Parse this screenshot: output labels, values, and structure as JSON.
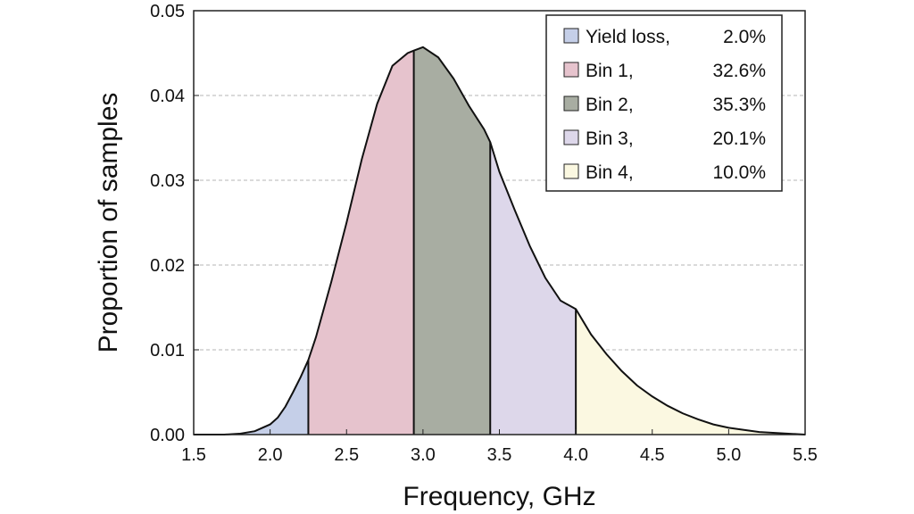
{
  "chart_data": {
    "type": "area",
    "xlabel": "Frequency, GHz",
    "ylabel": "Proportion of samples",
    "xlim": [
      1.5,
      5.5
    ],
    "ylim": [
      0,
      0.05
    ],
    "x_ticks": [
      "1.5",
      "2.0",
      "2.5",
      "3.0",
      "3.5",
      "4.0",
      "4.5",
      "5.0",
      "5.5"
    ],
    "y_ticks": [
      "0.00",
      "0.01",
      "0.02",
      "0.03",
      "0.04",
      "0.05"
    ],
    "grid": "horizontal dashed",
    "legend_position": "top-right",
    "curve": {
      "x": [
        1.5,
        1.7,
        1.8,
        1.9,
        2.0,
        2.05,
        2.1,
        2.15,
        2.2,
        2.25,
        2.3,
        2.4,
        2.5,
        2.6,
        2.7,
        2.8,
        2.9,
        2.94,
        3.0,
        3.1,
        3.2,
        3.3,
        3.4,
        3.44,
        3.5,
        3.6,
        3.7,
        3.8,
        3.9,
        4.0,
        4.1,
        4.2,
        4.3,
        4.4,
        4.5,
        4.6,
        4.7,
        4.8,
        4.9,
        5.0,
        5.2,
        5.5
      ],
      "y": [
        0.0,
        0.0,
        0.0001,
        0.0004,
        0.0012,
        0.002,
        0.0033,
        0.005,
        0.0068,
        0.0088,
        0.0115,
        0.018,
        0.025,
        0.0325,
        0.039,
        0.0435,
        0.045,
        0.0453,
        0.0457,
        0.0445,
        0.042,
        0.0388,
        0.036,
        0.0345,
        0.031,
        0.0265,
        0.0222,
        0.0185,
        0.0158,
        0.0148,
        0.0118,
        0.0095,
        0.0075,
        0.0058,
        0.0045,
        0.0034,
        0.0025,
        0.0018,
        0.0012,
        0.0008,
        0.0003,
        0.0
      ]
    },
    "boundaries": [
      2.25,
      2.94,
      3.44,
      4.0
    ],
    "series": [
      {
        "name": "Yield loss,",
        "percent": "2.0%",
        "color": "#c5cfe8",
        "range": [
          1.5,
          2.25
        ]
      },
      {
        "name": "Bin 1,",
        "percent": "32.6%",
        "color": "#e6c3cd",
        "range": [
          2.25,
          2.94
        ]
      },
      {
        "name": "Bin 2,",
        "percent": "35.3%",
        "color": "#a8ada2",
        "range": [
          2.94,
          3.44
        ]
      },
      {
        "name": "Bin 3,",
        "percent": "20.1%",
        "color": "#ddd7ea",
        "range": [
          3.44,
          4.0
        ]
      },
      {
        "name": "Bin 4,",
        "percent": "10.0%",
        "color": "#fbf8e1",
        "range": [
          4.0,
          5.5
        ]
      }
    ]
  }
}
